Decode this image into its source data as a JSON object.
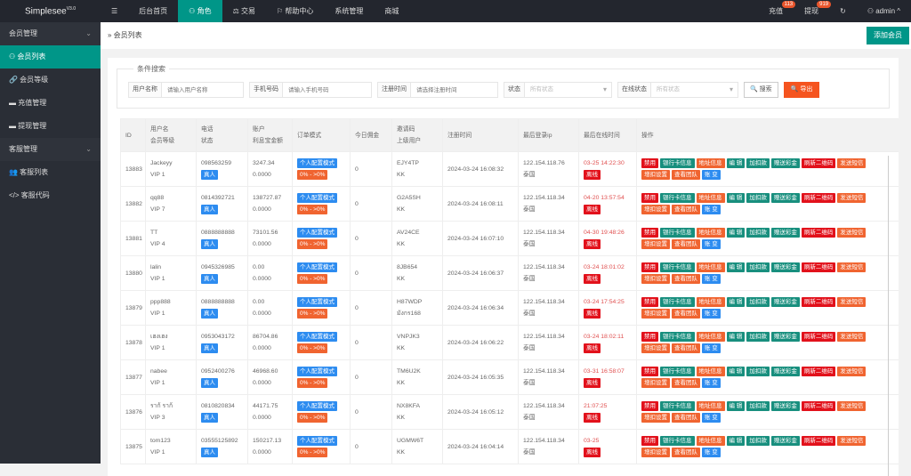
{
  "app": {
    "name": "Simplesee",
    "version": "V3.0"
  },
  "topnav": {
    "items": [
      {
        "label": "☰",
        "icon": "menu-icon"
      },
      {
        "label": "后台首页"
      },
      {
        "label": "⚇ 角色",
        "active": true
      },
      {
        "label": "⚖ 交易"
      },
      {
        "label": "⚐ 帮助中心"
      },
      {
        "label": "系统管理"
      },
      {
        "label": "商城"
      }
    ],
    "recharge": "充值",
    "recharge_badge": "113",
    "withdraw": "提现",
    "withdraw_badge": "919",
    "refresh": "↻",
    "user": "⚇ admin ^"
  },
  "sidebar": {
    "groups": [
      {
        "label": "会员管理",
        "items": [
          {
            "label": "⚇ 会员列表",
            "active": true
          },
          {
            "label": "🔗 会员等级"
          },
          {
            "label": "▬ 充值管理"
          },
          {
            "label": "▬ 提现管理"
          }
        ]
      },
      {
        "label": "客服管理",
        "items": [
          {
            "label": "👥 客服列表"
          },
          {
            "label": "</> 客服代码"
          }
        ]
      }
    ]
  },
  "breadcrumb": "» 会员列表",
  "add_button": "添加会员",
  "search": {
    "legend": "条件搜索",
    "username_label": "用户名称",
    "username_ph": "请输入用户名称",
    "phone_label": "手机号码",
    "phone_ph": "请输入手机号码",
    "reg_label": "注册时间",
    "reg_ph": "请选择注册时间",
    "status_label": "状态",
    "status_value": "所有状态",
    "online_label": "在线状态",
    "online_value": "所有状态",
    "search_btn": "🔍 搜索",
    "export_btn": "🔍 导出"
  },
  "table": {
    "headers": [
      [
        "ID"
      ],
      [
        "用户名",
        "会员等级"
      ],
      [
        "电话",
        "状态"
      ],
      [
        "账户",
        "利息宝金额"
      ],
      [
        "订单模式"
      ],
      [
        "今日佣金"
      ],
      [
        "邀请码",
        "上级用户"
      ],
      [
        "注册时间"
      ],
      [
        "最后登录ip"
      ],
      [
        "最后在线时间"
      ],
      [
        "操作"
      ]
    ],
    "tags": {
      "real": "真人",
      "mode": "个人配置模式",
      "range": "0% - >0%",
      "offline": "离线"
    },
    "actions1": [
      [
        "禁用",
        "red"
      ],
      [
        "银行卡信息",
        "teal"
      ],
      [
        "地址信息",
        "org"
      ],
      [
        "编 辑",
        "teal"
      ],
      [
        "加扣款",
        "teal"
      ],
      [
        "赠送彩金",
        "teal"
      ],
      [
        "刷新二维码",
        "red"
      ],
      [
        "发送短信",
        "org"
      ]
    ],
    "actions2": [
      [
        "增扣设置",
        "org"
      ],
      [
        "查看团队",
        "org"
      ],
      [
        "账 变",
        "blue"
      ]
    ],
    "rows": [
      {
        "id": "13883",
        "user": "Jackeyy",
        "vip": "VIP 1",
        "phone": "098563259",
        "bal": "3247.34",
        "interest": "0.0000",
        "comm": "0",
        "code": "EJY4TP",
        "parent": "KK",
        "reg": "2024-03-24 16:08:32",
        "ip": "122.154.118.76",
        "loc": "泰国",
        "last": "03-25 14:22:30"
      },
      {
        "id": "13882",
        "user": "qq88",
        "vip": "VIP 7",
        "phone": "0814392721",
        "bal": "138727.87",
        "interest": "0.0000",
        "comm": "0",
        "code": "G2A5SH",
        "parent": "KK",
        "reg": "2024-03-24 16:08:11",
        "ip": "122.154.118.34",
        "loc": "泰国",
        "last": "04-20 13:57:54"
      },
      {
        "id": "13881",
        "user": "TT",
        "vip": "VIP 4",
        "phone": "0888888888",
        "bal": "73101.56",
        "interest": "0.0000",
        "comm": "0",
        "code": "AV24CE",
        "parent": "KK",
        "reg": "2024-03-24 16:07:10",
        "ip": "122.154.118.34",
        "loc": "泰国",
        "last": "04-30 19:48:26"
      },
      {
        "id": "13880",
        "user": "lalin",
        "vip": "VIP 1",
        "phone": "0945326985",
        "bal": "0.00",
        "interest": "0.0000",
        "comm": "0",
        "code": "8JB654",
        "parent": "KK",
        "reg": "2024-03-24 16:06:37",
        "ip": "122.154.118.34",
        "loc": "泰国",
        "last": "03-24 18:01:02"
      },
      {
        "id": "13879",
        "user": "ppp888",
        "vip": "VIP 1",
        "phone": "0888888888",
        "bal": "0.00",
        "interest": "0.0000",
        "comm": "0",
        "code": "H87WDP",
        "parent": "มังกร168",
        "reg": "2024-03-24 16:06:34",
        "ip": "122.154.118.34",
        "loc": "泰国",
        "last": "03-24 17:54:25"
      },
      {
        "id": "13878",
        "user": "เฮงเฮง",
        "vip": "VIP 1",
        "phone": "0953043172",
        "bal": "86704.86",
        "interest": "0.0000",
        "comm": "0",
        "code": "VNPJK3",
        "parent": "KK",
        "reg": "2024-03-24 16:06:22",
        "ip": "122.154.118.34",
        "loc": "泰国",
        "last": "03-24 18:02:11"
      },
      {
        "id": "13877",
        "user": "nabee",
        "vip": "VIP 1",
        "phone": "0952400276",
        "bal": "46968.60",
        "interest": "0.0000",
        "comm": "0",
        "code": "TM6U2K",
        "parent": "KK",
        "reg": "2024-03-24 16:05:35",
        "ip": "122.154.118.34",
        "loc": "泰国",
        "last": "03-31 16:58:07"
      },
      {
        "id": "13876",
        "user": "ราก้ ราก้",
        "vip": "VIP 3",
        "phone": "0810820834",
        "bal": "44171.75",
        "interest": "0.0000",
        "comm": "0",
        "code": "NX8KFA",
        "parent": "KK",
        "reg": "2024-03-24 16:05:12",
        "ip": "122.154.118.34",
        "loc": "泰国",
        "last": "21:07:25"
      },
      {
        "id": "13875",
        "user": "tom123",
        "vip": "VIP 1",
        "phone": "03555125892",
        "bal": "150217.13",
        "interest": "0.0000",
        "comm": "0",
        "code": "UGMW6T",
        "parent": "KK",
        "reg": "2024-03-24 16:04:14",
        "ip": "122.154.118.34",
        "loc": "泰国",
        "last": "03-25"
      }
    ]
  }
}
